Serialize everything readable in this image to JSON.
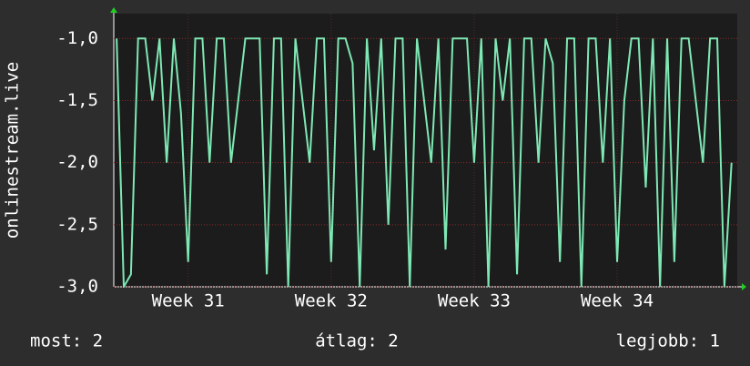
{
  "chart_data": {
    "type": "line",
    "y_label": "onlinestream.live",
    "x": [
      30.5,
      30.55,
      30.6,
      30.65,
      30.7,
      30.75,
      30.8,
      30.85,
      30.9,
      30.95,
      31,
      31.05,
      31.1,
      31.15,
      31.2,
      31.25,
      31.3,
      31.35,
      31.4,
      31.45,
      31.5,
      31.55,
      31.6,
      31.65,
      31.7,
      31.75,
      31.8,
      31.85,
      31.9,
      31.95,
      32,
      32.05,
      32.1,
      32.15,
      32.2,
      32.25,
      32.3,
      32.35,
      32.4,
      32.45,
      32.5,
      32.55,
      32.6,
      32.65,
      32.7,
      32.75,
      32.8,
      32.85,
      32.9,
      32.95,
      33,
      33.05,
      33.1,
      33.15,
      33.2,
      33.25,
      33.3,
      33.35,
      33.4,
      33.45,
      33.5,
      33.55,
      33.6,
      33.65,
      33.7,
      33.75,
      33.8,
      33.85,
      33.9,
      33.95,
      34,
      34.05,
      34.1,
      34.15,
      34.2,
      34.25,
      34.3,
      34.35,
      34.4,
      34.45,
      34.5,
      34.55,
      34.6,
      34.65,
      34.7,
      34.75,
      34.8
    ],
    "values": [
      -1,
      -3,
      -2.9,
      -1,
      -1,
      -1.5,
      -1,
      -2,
      -1,
      -1.6,
      -2.8,
      -1,
      -1,
      -2,
      -1,
      -1,
      -2,
      -1.5,
      -1,
      -1,
      -1,
      -2.9,
      -1,
      -1,
      -3,
      -1,
      -1.5,
      -2,
      -1,
      -1,
      -2.8,
      -1,
      -1,
      -1.2,
      -3,
      -1,
      -1.9,
      -1,
      -2.5,
      -1,
      -1,
      -3,
      -1,
      -1.5,
      -2,
      -1,
      -2.7,
      -1,
      -1,
      -1,
      -2,
      -1,
      -3,
      -1,
      -1.5,
      -1,
      -2.9,
      -1,
      -1,
      -2,
      -1,
      -1.2,
      -2.8,
      -1,
      -1,
      -3,
      -1,
      -1,
      -2,
      -1,
      -2.8,
      -1.5,
      -1,
      -1,
      -2.2,
      -1,
      -3,
      -1,
      -2.8,
      -1,
      -1,
      -1.5,
      -2,
      -1,
      -1,
      -3,
      -2
    ],
    "color": "#7ee8b4",
    "xlim": [
      30.48,
      34.84
    ],
    "xticks": [
      {
        "value": 31,
        "label": "Week 31"
      },
      {
        "value": 32,
        "label": "Week 32"
      },
      {
        "value": 33,
        "label": "Week 33"
      },
      {
        "value": 34,
        "label": "Week 34"
      }
    ],
    "ylim": [
      -3,
      -0.8
    ],
    "yticks": [
      {
        "value": -3,
        "label": "-3,0"
      },
      {
        "value": -2.5,
        "label": "-2,5"
      },
      {
        "value": -2,
        "label": "-2,0"
      },
      {
        "value": -1.5,
        "label": "-1,5"
      },
      {
        "value": -1,
        "label": "-1,0"
      }
    ],
    "grid": true,
    "summary": [
      "most: 2",
      "átlag: 2",
      "legjobb: 1"
    ]
  }
}
